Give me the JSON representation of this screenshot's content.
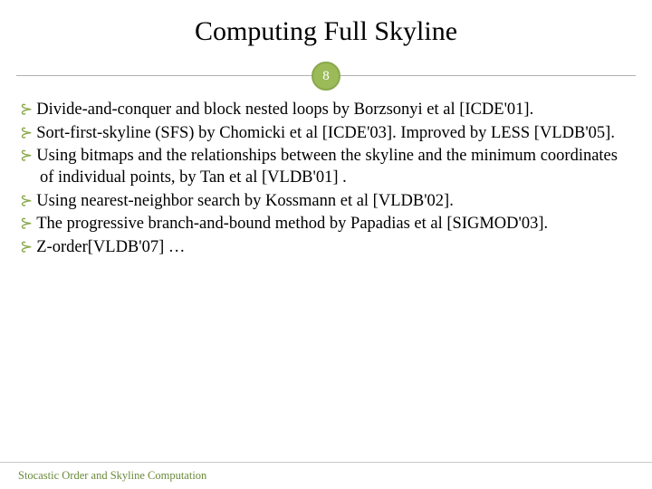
{
  "title": "Computing Full Skyline",
  "slide_number": "8",
  "accent_color": "#9bbb59",
  "accent_border": "#8aa84a",
  "line_color": "#b0b0b0",
  "bullet_color": "#8aa84a",
  "bullet_glyph": "⊱",
  "items": [
    "Divide-and-conquer and block nested loops by Borzsonyi et al [ICDE'01].",
    "Sort-first-skyline (SFS) by Chomicki et al [ICDE'03]. Improved by LESS [VLDB'05].",
    "Using bitmaps and the relationships between the skyline and the minimum coordinates of individual points, by Tan et al [VLDB'01] .",
    "Using nearest-neighbor search by Kossmann et al [VLDB'02].",
    "The progressive branch-and-bound method by Papadias et al [SIGMOD'03].",
    "Z-order[VLDB'07]  …"
  ],
  "footer": "Stocastic Order and Skyline Computation",
  "title_fontsize": 30,
  "body_fontsize": 18.5,
  "footer_fontsize": 12.5
}
